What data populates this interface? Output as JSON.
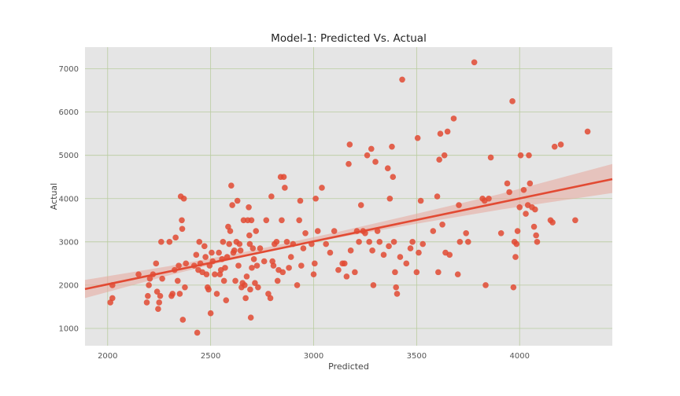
{
  "chart_data": {
    "type": "scatter",
    "title": "Model-1: Predicted Vs. Actual",
    "xlabel": "Predicted",
    "ylabel": "Actual",
    "xlim": [
      1890,
      4450
    ],
    "ylim": [
      600,
      7500
    ],
    "xticks": [
      2000,
      2500,
      3000,
      3500,
      4000
    ],
    "yticks": [
      1000,
      2000,
      3000,
      4000,
      5000,
      6000,
      7000
    ],
    "grid": true,
    "colors": {
      "background": "#e5e5e5",
      "grid": "#b9cc9f",
      "points": "#e24a33",
      "fit_line": "#e24a33",
      "confidence_band": "#e8a79c"
    },
    "regression": {
      "x0": 1890,
      "y0": 1910,
      "x1": 4450,
      "y1": 4450
    },
    "confidence_band": [
      {
        "x": 1890,
        "lo": 1700,
        "hi": 2120
      },
      {
        "x": 2300,
        "lo": 2230,
        "hi": 2440
      },
      {
        "x": 2700,
        "lo": 2700,
        "hi": 2800
      },
      {
        "x": 3100,
        "lo": 3080,
        "hi": 3210
      },
      {
        "x": 3500,
        "lo": 3420,
        "hi": 3650
      },
      {
        "x": 3900,
        "lo": 3740,
        "hi": 4100
      },
      {
        "x": 4450,
        "lo": 4130,
        "hi": 4800
      }
    ],
    "points": [
      {
        "x": 2013,
        "y": 1600
      },
      {
        "x": 2023,
        "y": 1700
      },
      {
        "x": 2023,
        "y": 2000
      },
      {
        "x": 2150,
        "y": 2250
      },
      {
        "x": 2190,
        "y": 1600
      },
      {
        "x": 2195,
        "y": 1750
      },
      {
        "x": 2200,
        "y": 2000
      },
      {
        "x": 2205,
        "y": 2150
      },
      {
        "x": 2220,
        "y": 2250
      },
      {
        "x": 2235,
        "y": 2500
      },
      {
        "x": 2240,
        "y": 1850
      },
      {
        "x": 2245,
        "y": 1450
      },
      {
        "x": 2250,
        "y": 1600
      },
      {
        "x": 2255,
        "y": 1750
      },
      {
        "x": 2260,
        "y": 3000
      },
      {
        "x": 2265,
        "y": 2150
      },
      {
        "x": 2300,
        "y": 3000
      },
      {
        "x": 2310,
        "y": 1750
      },
      {
        "x": 2315,
        "y": 1800
      },
      {
        "x": 2325,
        "y": 2350
      },
      {
        "x": 2330,
        "y": 3100
      },
      {
        "x": 2340,
        "y": 2100
      },
      {
        "x": 2345,
        "y": 2450
      },
      {
        "x": 2350,
        "y": 1800
      },
      {
        "x": 2355,
        "y": 4050
      },
      {
        "x": 2360,
        "y": 3500
      },
      {
        "x": 2362,
        "y": 3300
      },
      {
        "x": 2365,
        "y": 1200
      },
      {
        "x": 2370,
        "y": 4000
      },
      {
        "x": 2375,
        "y": 1950
      },
      {
        "x": 2380,
        "y": 2500
      },
      {
        "x": 2420,
        "y": 2450
      },
      {
        "x": 2430,
        "y": 2700
      },
      {
        "x": 2435,
        "y": 900
      },
      {
        "x": 2440,
        "y": 2350
      },
      {
        "x": 2445,
        "y": 3000
      },
      {
        "x": 2450,
        "y": 2500
      },
      {
        "x": 2460,
        "y": 2300
      },
      {
        "x": 2470,
        "y": 2900
      },
      {
        "x": 2475,
        "y": 2650
      },
      {
        "x": 2480,
        "y": 2250
      },
      {
        "x": 2485,
        "y": 1950
      },
      {
        "x": 2490,
        "y": 1900
      },
      {
        "x": 2495,
        "y": 2450
      },
      {
        "x": 2500,
        "y": 1350
      },
      {
        "x": 2505,
        "y": 2750
      },
      {
        "x": 2510,
        "y": 2550
      },
      {
        "x": 2520,
        "y": 2250
      },
      {
        "x": 2530,
        "y": 1800
      },
      {
        "x": 2540,
        "y": 2750
      },
      {
        "x": 2545,
        "y": 2250
      },
      {
        "x": 2550,
        "y": 2350
      },
      {
        "x": 2555,
        "y": 2600
      },
      {
        "x": 2560,
        "y": 3000
      },
      {
        "x": 2565,
        "y": 2100
      },
      {
        "x": 2570,
        "y": 2400
      },
      {
        "x": 2575,
        "y": 1650
      },
      {
        "x": 2580,
        "y": 2650
      },
      {
        "x": 2585,
        "y": 3350
      },
      {
        "x": 2590,
        "y": 2950
      },
      {
        "x": 2595,
        "y": 3250
      },
      {
        "x": 2600,
        "y": 4300
      },
      {
        "x": 2605,
        "y": 3850
      },
      {
        "x": 2610,
        "y": 2750
      },
      {
        "x": 2615,
        "y": 2800
      },
      {
        "x": 2620,
        "y": 2100
      },
      {
        "x": 2625,
        "y": 3000
      },
      {
        "x": 2630,
        "y": 3950
      },
      {
        "x": 2635,
        "y": 2450
      },
      {
        "x": 2640,
        "y": 2950
      },
      {
        "x": 2645,
        "y": 2800
      },
      {
        "x": 2650,
        "y": 1950
      },
      {
        "x": 2655,
        "y": 2050
      },
      {
        "x": 2660,
        "y": 3500
      },
      {
        "x": 2665,
        "y": 2000
      },
      {
        "x": 2670,
        "y": 1700
      },
      {
        "x": 2675,
        "y": 2200
      },
      {
        "x": 2680,
        "y": 3500
      },
      {
        "x": 2685,
        "y": 3800
      },
      {
        "x": 2688,
        "y": 3150
      },
      {
        "x": 2690,
        "y": 2950
      },
      {
        "x": 2692,
        "y": 1900
      },
      {
        "x": 2695,
        "y": 1250
      },
      {
        "x": 2698,
        "y": 3500
      },
      {
        "x": 2700,
        "y": 2400
      },
      {
        "x": 2705,
        "y": 2850
      },
      {
        "x": 2710,
        "y": 2600
      },
      {
        "x": 2715,
        "y": 2050
      },
      {
        "x": 2720,
        "y": 3250
      },
      {
        "x": 2725,
        "y": 2450
      },
      {
        "x": 2730,
        "y": 1950
      },
      {
        "x": 2740,
        "y": 2850
      },
      {
        "x": 2760,
        "y": 2550
      },
      {
        "x": 2770,
        "y": 3500
      },
      {
        "x": 2780,
        "y": 1800
      },
      {
        "x": 2790,
        "y": 1700
      },
      {
        "x": 2795,
        "y": 4050
      },
      {
        "x": 2800,
        "y": 2550
      },
      {
        "x": 2805,
        "y": 2450
      },
      {
        "x": 2810,
        "y": 2950
      },
      {
        "x": 2820,
        "y": 3000
      },
      {
        "x": 2825,
        "y": 2100
      },
      {
        "x": 2830,
        "y": 2350
      },
      {
        "x": 2840,
        "y": 4500
      },
      {
        "x": 2845,
        "y": 3500
      },
      {
        "x": 2850,
        "y": 2300
      },
      {
        "x": 2855,
        "y": 4500
      },
      {
        "x": 2860,
        "y": 4250
      },
      {
        "x": 2870,
        "y": 3000
      },
      {
        "x": 2880,
        "y": 2400
      },
      {
        "x": 2890,
        "y": 2650
      },
      {
        "x": 2900,
        "y": 2950
      },
      {
        "x": 2920,
        "y": 2000
      },
      {
        "x": 2930,
        "y": 3500
      },
      {
        "x": 2935,
        "y": 3950
      },
      {
        "x": 2940,
        "y": 2450
      },
      {
        "x": 2950,
        "y": 2850
      },
      {
        "x": 2960,
        "y": 3200
      },
      {
        "x": 2990,
        "y": 2950
      },
      {
        "x": 3000,
        "y": 2250
      },
      {
        "x": 3005,
        "y": 2500
      },
      {
        "x": 3010,
        "y": 4000
      },
      {
        "x": 3020,
        "y": 3250
      },
      {
        "x": 3040,
        "y": 4250
      },
      {
        "x": 3060,
        "y": 2950
      },
      {
        "x": 3080,
        "y": 2750
      },
      {
        "x": 3100,
        "y": 3250
      },
      {
        "x": 3120,
        "y": 2350
      },
      {
        "x": 3140,
        "y": 2500
      },
      {
        "x": 3150,
        "y": 2500
      },
      {
        "x": 3160,
        "y": 2200
      },
      {
        "x": 3170,
        "y": 4800
      },
      {
        "x": 3175,
        "y": 5250
      },
      {
        "x": 3180,
        "y": 2800
      },
      {
        "x": 3200,
        "y": 2300
      },
      {
        "x": 3210,
        "y": 3250
      },
      {
        "x": 3220,
        "y": 3000
      },
      {
        "x": 3230,
        "y": 3850
      },
      {
        "x": 3240,
        "y": 3250
      },
      {
        "x": 3250,
        "y": 3200
      },
      {
        "x": 3260,
        "y": 5000
      },
      {
        "x": 3270,
        "y": 3000
      },
      {
        "x": 3280,
        "y": 5150
      },
      {
        "x": 3285,
        "y": 2800
      },
      {
        "x": 3290,
        "y": 2000
      },
      {
        "x": 3300,
        "y": 4850
      },
      {
        "x": 3310,
        "y": 3250
      },
      {
        "x": 3320,
        "y": 3000
      },
      {
        "x": 3340,
        "y": 2700
      },
      {
        "x": 3360,
        "y": 4700
      },
      {
        "x": 3365,
        "y": 2900
      },
      {
        "x": 3370,
        "y": 4000
      },
      {
        "x": 3380,
        "y": 5200
      },
      {
        "x": 3385,
        "y": 4500
      },
      {
        "x": 3390,
        "y": 3000
      },
      {
        "x": 3395,
        "y": 2300
      },
      {
        "x": 3400,
        "y": 1950
      },
      {
        "x": 3405,
        "y": 1800
      },
      {
        "x": 3420,
        "y": 2650
      },
      {
        "x": 3430,
        "y": 6750
      },
      {
        "x": 3450,
        "y": 2500
      },
      {
        "x": 3470,
        "y": 2850
      },
      {
        "x": 3480,
        "y": 3000
      },
      {
        "x": 3500,
        "y": 2300
      },
      {
        "x": 3505,
        "y": 5400
      },
      {
        "x": 3510,
        "y": 2750
      },
      {
        "x": 3520,
        "y": 3950
      },
      {
        "x": 3530,
        "y": 2950
      },
      {
        "x": 3580,
        "y": 3250
      },
      {
        "x": 3600,
        "y": 4050
      },
      {
        "x": 3605,
        "y": 2300
      },
      {
        "x": 3610,
        "y": 4900
      },
      {
        "x": 3615,
        "y": 5500
      },
      {
        "x": 3625,
        "y": 3400
      },
      {
        "x": 3635,
        "y": 5000
      },
      {
        "x": 3640,
        "y": 2750
      },
      {
        "x": 3650,
        "y": 5550
      },
      {
        "x": 3660,
        "y": 2700
      },
      {
        "x": 3680,
        "y": 5850
      },
      {
        "x": 3700,
        "y": 2250
      },
      {
        "x": 3705,
        "y": 3850
      },
      {
        "x": 3710,
        "y": 3000
      },
      {
        "x": 3740,
        "y": 3200
      },
      {
        "x": 3750,
        "y": 3000
      },
      {
        "x": 3780,
        "y": 7150
      },
      {
        "x": 3820,
        "y": 4000
      },
      {
        "x": 3830,
        "y": 3950
      },
      {
        "x": 3835,
        "y": 2000
      },
      {
        "x": 3850,
        "y": 4000
      },
      {
        "x": 3860,
        "y": 4950
      },
      {
        "x": 3910,
        "y": 3200
      },
      {
        "x": 3940,
        "y": 4350
      },
      {
        "x": 3950,
        "y": 4150
      },
      {
        "x": 3965,
        "y": 6250
      },
      {
        "x": 3970,
        "y": 1950
      },
      {
        "x": 3975,
        "y": 3000
      },
      {
        "x": 3980,
        "y": 2650
      },
      {
        "x": 3985,
        "y": 2950
      },
      {
        "x": 3990,
        "y": 3250
      },
      {
        "x": 4000,
        "y": 3800
      },
      {
        "x": 4005,
        "y": 5000
      },
      {
        "x": 4020,
        "y": 4200
      },
      {
        "x": 4030,
        "y": 3650
      },
      {
        "x": 4040,
        "y": 3850
      },
      {
        "x": 4045,
        "y": 5000
      },
      {
        "x": 4050,
        "y": 4350
      },
      {
        "x": 4060,
        "y": 3800
      },
      {
        "x": 4070,
        "y": 3350
      },
      {
        "x": 4075,
        "y": 3750
      },
      {
        "x": 4080,
        "y": 3150
      },
      {
        "x": 4085,
        "y": 3000
      },
      {
        "x": 4150,
        "y": 3500
      },
      {
        "x": 4160,
        "y": 3450
      },
      {
        "x": 4170,
        "y": 5200
      },
      {
        "x": 4200,
        "y": 5250
      },
      {
        "x": 4270,
        "y": 3500
      },
      {
        "x": 4330,
        "y": 5550
      }
    ]
  }
}
